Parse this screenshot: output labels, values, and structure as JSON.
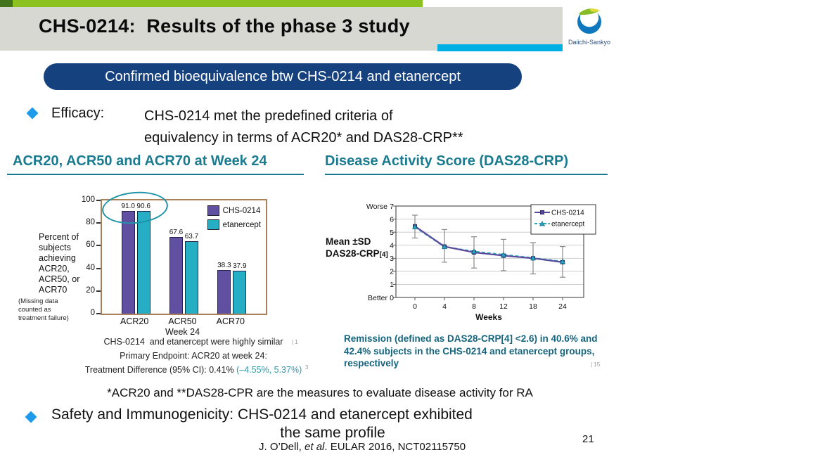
{
  "colors": {
    "green_bar": "#8cc21f",
    "gray_band": "#d8d8d3",
    "cyan_bar": "#00b0e4",
    "navy_pill": "#15417e",
    "bullet_blue": "#1d9bea",
    "teal_heading": "#1a7b90",
    "ci_teal": "#2b9aaa",
    "remission_teal": "#15657f"
  },
  "header": {
    "title": "CHS-0214:  Results of the phase 3 study",
    "logo_text": "Daiichi-Sankyo"
  },
  "banner": {
    "text": "Confirmed bioequivalence btw CHS-0214 and etanercept"
  },
  "efficacy": {
    "label": "Efficacy:",
    "lines": [
      "CHS-0214 met the predefined criteria of",
      "equivalency in terms of ACR20* and DAS28-CRP**"
    ]
  },
  "left_panel": {
    "title": "ACR20, ACR50 and ACR70 at Week 24",
    "ynote": [
      "Percent of",
      "subjects",
      "achieving",
      "ACR20,",
      "ACR50, or",
      "ACR70"
    ],
    "missing_note": [
      "(Missing data",
      "counted as",
      "treatment failure)"
    ],
    "x_caption": "Week 24",
    "footnote1": "CHS-0214  and etanercept were highly similar",
    "footnote2": "Primary Endpoint: ACR20 at week 24:",
    "footnote3_prefix": "Treatment Difference (95% CI): 0.41% ",
    "footnote3_ci": "(–4.55%, 5.37%)",
    "artifact1": "| 1",
    "artifact2": "3"
  },
  "right_panel": {
    "title": "Disease Activity Score (DAS28-CRP)",
    "mean_label": "Mean ±SD",
    "das_label": "DAS28-CRP",
    "das_sub": "[4]",
    "remission": [
      "Remission (defined as DAS28-CRP[4] <2.6) in 40.6% and",
      "42.4% subjects in the CHS-0214 and etanercept groups,",
      "respectively"
    ],
    "artifact": "| 15"
  },
  "footnotes": {
    "measures": "*ACR20 and **DAS28-CPR are the measures to evaluate disease activity for RA",
    "safety_line1": "Safety and Immunogenicity: CHS-0214 and etanercept exhibited",
    "safety_line2": "the same profile",
    "citation_pre": "J. O’Dell, ",
    "citation_italic": "et al",
    "citation_post": ". EULAR 2016, NCT02115750",
    "page_number": "21"
  },
  "chart_data": [
    {
      "type": "bar",
      "title": "ACR20, ACR50 and ACR70 at Week 24",
      "categories": [
        "ACR20",
        "ACR50",
        "ACR70"
      ],
      "series": [
        {
          "name": "CHS-0214",
          "color": "#6150a2",
          "values": [
            91.0,
            67.6,
            38.3
          ]
        },
        {
          "name": "etanercept",
          "color": "#25aec4",
          "values": [
            90.6,
            63.7,
            37.9
          ]
        }
      ],
      "xlabel": "Week 24",
      "ylabel": "Percent of subjects achieving ACR20, ACR50, or ACR70",
      "ylim": [
        0,
        100
      ],
      "yticks": [
        0,
        20,
        40,
        60,
        80,
        100
      ],
      "legend_position": "top-right",
      "annotation": "ellipse highlighting 91.0 and 90.6 at ACR20"
    },
    {
      "type": "line",
      "title": "Disease Activity Score (DAS28-CRP)",
      "x": [
        0,
        4,
        8,
        12,
        18,
        24
      ],
      "series": [
        {
          "name": "CHS-0214",
          "color": "#5a4a9c",
          "style": "solid",
          "marker": "square",
          "values": [
            5.45,
            3.9,
            3.45,
            3.2,
            3.0,
            2.7
          ],
          "sd_upper": [
            6.3,
            5.2,
            4.65,
            4.45,
            4.2,
            3.9
          ],
          "sd_lower": [
            4.55,
            2.7,
            2.25,
            2.05,
            1.8,
            1.55
          ]
        },
        {
          "name": "etanercept",
          "color": "#28a7c2",
          "style": "dashed",
          "marker": "triangle",
          "values": [
            5.4,
            3.88,
            3.52,
            3.27,
            3.02,
            2.75
          ]
        }
      ],
      "xlabel": "Weeks",
      "ylim": [
        0,
        7
      ],
      "yticks": [
        0,
        1,
        2,
        3,
        4,
        5,
        6,
        7
      ],
      "y_top_label": "Worse",
      "y_bottom_label": "Better",
      "grid": true,
      "legend_position": "top-right"
    }
  ]
}
